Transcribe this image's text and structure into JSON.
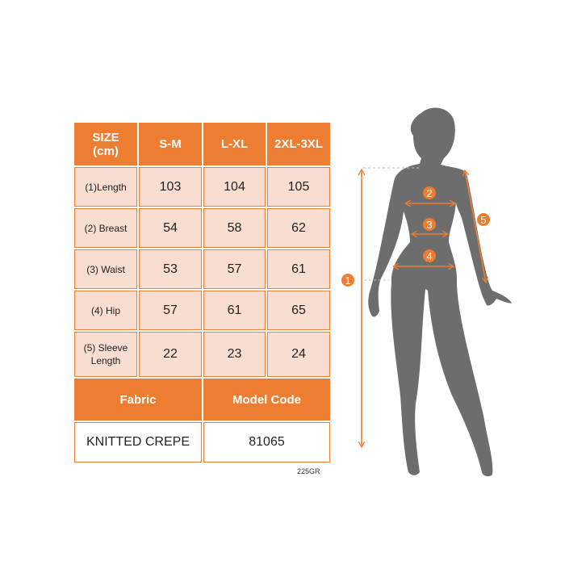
{
  "table": {
    "header": [
      "SIZE\n(cm)",
      "S-M",
      "L-XL",
      "2XL-3XL"
    ],
    "header_size_line1": "SIZE",
    "header_size_line2": "(cm)",
    "rows": [
      {
        "label": "(1)Length",
        "values": [
          "103",
          "104",
          "105"
        ]
      },
      {
        "label": "(2) Breast",
        "values": [
          "54",
          "58",
          "62"
        ]
      },
      {
        "label": "(3) Waist",
        "values": [
          "53",
          "57",
          "61"
        ]
      },
      {
        "label": "(4) Hip",
        "values": [
          "57",
          "61",
          "65"
        ]
      },
      {
        "label": "(5) Sleeve Length",
        "label_line1": "(5) Sleeve",
        "label_line2": "Length",
        "values": [
          "22",
          "23",
          "24"
        ]
      }
    ],
    "fabric_header": "Fabric",
    "model_code_header": "Model Code",
    "fabric_value": "KNITTED CREPE",
    "model_code_value": "81065"
  },
  "sku_label": "225GR",
  "figure": {
    "markers": [
      "1",
      "2",
      "3",
      "4",
      "5"
    ]
  },
  "colors": {
    "accent": "#ed7d31",
    "cell": "#f9ddd1",
    "silhouette": "#6d6d6d"
  }
}
